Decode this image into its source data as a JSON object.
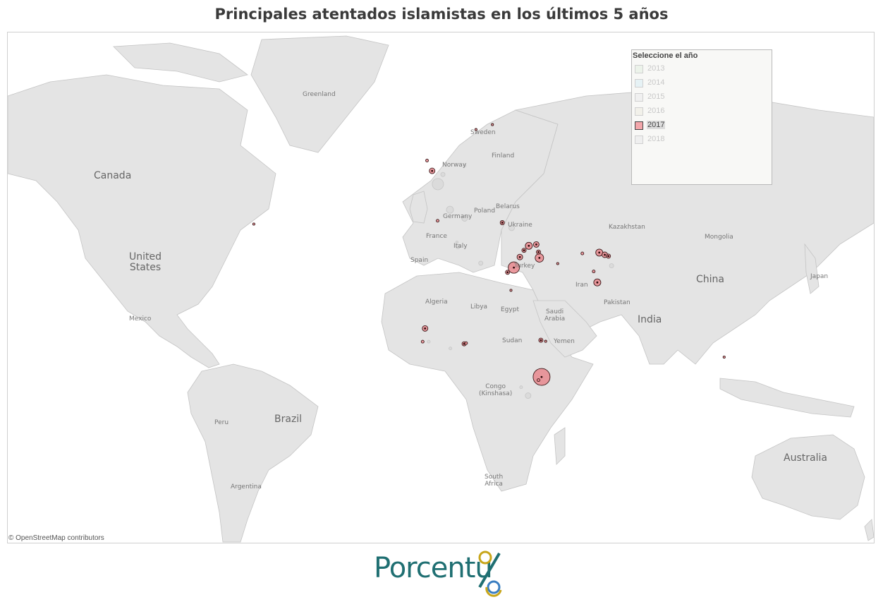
{
  "title": "Principales atentados islamistas en los últimos 5 años",
  "map": {
    "attribution": "© OpenStreetMap contributors",
    "labels": {
      "greenland": "Greenland",
      "canada": "Canada",
      "united_states": "United\nStates",
      "mexico": "Mexico",
      "brazil": "Brazil",
      "peru": "Peru",
      "argentina": "Argentina",
      "sweden": "Sweden",
      "norway": "Norway",
      "finland": "Finland",
      "germany": "Germany",
      "poland": "Poland",
      "belarus": "Belarus",
      "ukraine": "Ukraine",
      "france": "France",
      "italy": "Italy",
      "spain": "Spain",
      "turkey": "Turkey",
      "algeria": "Algeria",
      "libya": "Libya",
      "egypt": "Egypt",
      "saudi_arabia": "Saudi\nArabia",
      "iran": "Iran",
      "pakistan": "Pakistan",
      "kazakhstan": "Kazakhstan",
      "mongolia": "Mongolia",
      "china": "China",
      "japan": "Japan",
      "india": "India",
      "sudan": "Sudan",
      "yemen": "Yemen",
      "congo": "Congo\n(Kinshasa)",
      "south_africa": "South\nAfrica",
      "australia": "Australia"
    },
    "colors": {
      "land": "#e4e4e4",
      "border": "#c4c4c4",
      "marker_2017": "#e8888e",
      "marker_other": "#d6d6d6"
    },
    "attacks": [
      {
        "lon": -0.1,
        "lat": 51.5,
        "year": 2017,
        "size": 4
      },
      {
        "lon": -2.2,
        "lat": 53.5,
        "year": 2017,
        "size": 2
      },
      {
        "lon": 2.3,
        "lat": 48.9,
        "year": 2015,
        "size": 8
      },
      {
        "lon": 4.4,
        "lat": 50.8,
        "year": 2016,
        "size": 3
      },
      {
        "lon": 7.3,
        "lat": 43.7,
        "year": 2016,
        "size": 5
      },
      {
        "lon": 2.2,
        "lat": 41.4,
        "year": 2017,
        "size": 2
      },
      {
        "lon": 13.4,
        "lat": 52.5,
        "year": 2016,
        "size": 2
      },
      {
        "lon": 18.1,
        "lat": 59.3,
        "year": 2017,
        "size": 1
      },
      {
        "lon": 24.9,
        "lat": 60.2,
        "year": 2017,
        "size": 1
      },
      {
        "lon": -74.0,
        "lat": 40.7,
        "year": 2017,
        "size": 1
      },
      {
        "lon": -117.3,
        "lat": 34.1,
        "year": 2015,
        "size": 2
      },
      {
        "lon": 10.2,
        "lat": 36.8,
        "year": 2015,
        "size": 1
      },
      {
        "lon": 10.6,
        "lat": 35.8,
        "year": 2015,
        "size": 3
      },
      {
        "lon": 29.0,
        "lat": 41.0,
        "year": 2017,
        "size": 3
      },
      {
        "lon": 32.9,
        "lat": 39.9,
        "year": 2016,
        "size": 4
      },
      {
        "lon": 36.3,
        "lat": 33.5,
        "year": 2017,
        "size": 4
      },
      {
        "lon": 33.8,
        "lat": 31.1,
        "year": 2017,
        "size": 8
      },
      {
        "lon": 31.2,
        "lat": 30.0,
        "year": 2017,
        "size": 3
      },
      {
        "lon": 38.0,
        "lat": 35.0,
        "year": 2017,
        "size": 3
      },
      {
        "lon": 40.0,
        "lat": 36.0,
        "year": 2017,
        "size": 5
      },
      {
        "lon": 44.4,
        "lat": 33.3,
        "year": 2017,
        "size": 6
      },
      {
        "lon": 43.1,
        "lat": 36.3,
        "year": 2017,
        "size": 4
      },
      {
        "lon": 44.0,
        "lat": 34.6,
        "year": 2017,
        "size": 3
      },
      {
        "lon": 20.1,
        "lat": 32.1,
        "year": 2014,
        "size": 3
      },
      {
        "lon": 32.6,
        "lat": 25.7,
        "year": 2017,
        "size": 1
      },
      {
        "lon": 69.2,
        "lat": 34.5,
        "year": 2017,
        "size": 5
      },
      {
        "lon": 71.5,
        "lat": 34.0,
        "year": 2017,
        "size": 4
      },
      {
        "lon": 73.0,
        "lat": 33.7,
        "year": 2017,
        "size": 3
      },
      {
        "lon": 66.9,
        "lat": 30.2,
        "year": 2017,
        "size": 2
      },
      {
        "lon": 68.4,
        "lat": 27.6,
        "year": 2017,
        "size": 5
      },
      {
        "lon": 62.2,
        "lat": 34.3,
        "year": 2017,
        "size": 2
      },
      {
        "lon": 74.3,
        "lat": 31.5,
        "year": 2016,
        "size": 3
      },
      {
        "lon": 45.3,
        "lat": 2.0,
        "year": 2017,
        "size": 12
      },
      {
        "lon": 44.0,
        "lat": 1.0,
        "year": 2017,
        "size": 2
      },
      {
        "lon": 39.7,
        "lat": -4.0,
        "year": 2015,
        "size": 4
      },
      {
        "lon": 36.8,
        "lat": -1.3,
        "year": 2013,
        "size": 2
      },
      {
        "lon": 45.0,
        "lat": 12.8,
        "year": 2017,
        "size": 3
      },
      {
        "lon": 47.0,
        "lat": 12.5,
        "year": 2017,
        "size": 1
      },
      {
        "lon": 13.2,
        "lat": 11.8,
        "year": 2017,
        "size": 3
      },
      {
        "lon": 14.0,
        "lat": 12.0,
        "year": 2017,
        "size": 2
      },
      {
        "lon": 7.5,
        "lat": 10.5,
        "year": 2014,
        "size": 2
      },
      {
        "lon": -3.0,
        "lat": 16.0,
        "year": 2017,
        "size": 4
      },
      {
        "lon": -4.0,
        "lat": 12.4,
        "year": 2017,
        "size": 2
      },
      {
        "lon": -1.5,
        "lat": 12.4,
        "year": 2016,
        "size": 2
      },
      {
        "lon": 121.0,
        "lat": 8.0,
        "year": 2017,
        "size": 1
      },
      {
        "lon": 52.0,
        "lat": 32.0,
        "year": 2017,
        "size": 1
      },
      {
        "lon": 13.4,
        "lat": 41.9,
        "year": 2016,
        "size": 4
      }
    ]
  },
  "legend": {
    "title": "Seleccione el año",
    "items": [
      {
        "label": "2013",
        "color": "#ecf3ea",
        "active": false
      },
      {
        "label": "2014",
        "color": "#e6f2f5",
        "active": false
      },
      {
        "label": "2015",
        "color": "#f0f0f0",
        "active": false
      },
      {
        "label": "2016",
        "color": "#f2f1ea",
        "active": false
      },
      {
        "label": "2017",
        "color": "#f3a7ab",
        "active": true
      },
      {
        "label": "2018",
        "color": "#efefef",
        "active": false
      }
    ]
  },
  "logo": {
    "text": "Porcentu",
    "colors": [
      "#1f6f72",
      "#c8a61a",
      "#d9342b",
      "#3a7ec1",
      "#7bb83b"
    ]
  }
}
